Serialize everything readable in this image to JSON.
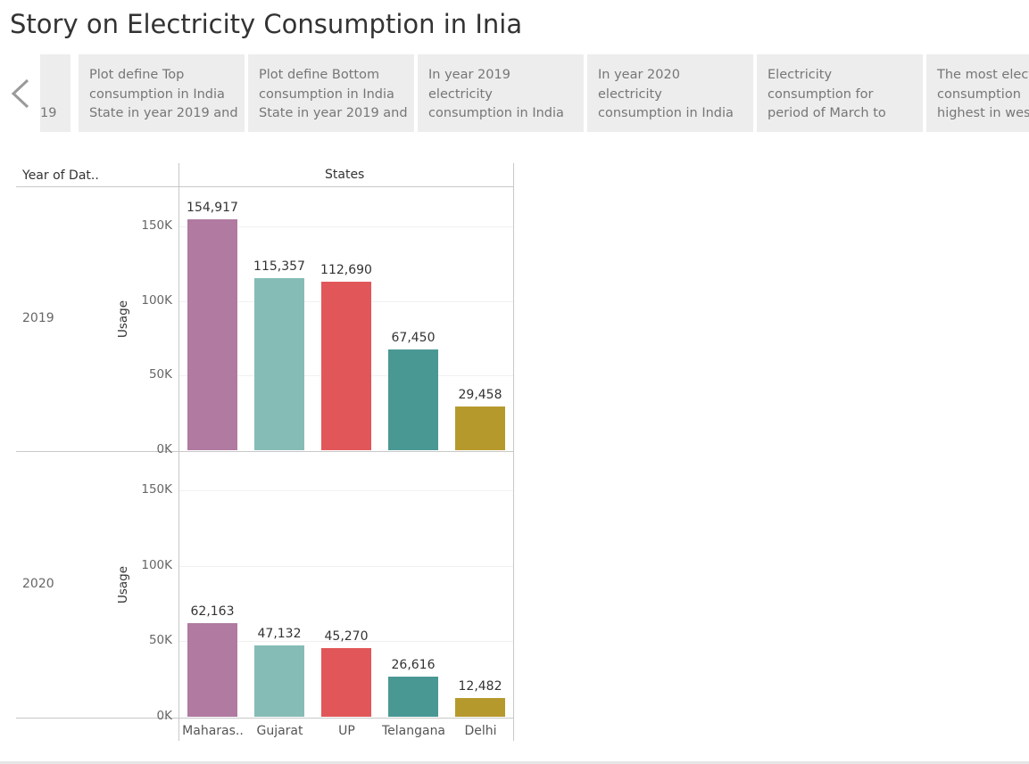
{
  "story": {
    "title": "Story on Electricity Consumption in Inia",
    "points": [
      {
        "lines": [
          "",
          "",
          "19"
        ]
      },
      {
        "lines": [
          "Plot define Top",
          "consumption in India",
          "State in year 2019 and"
        ]
      },
      {
        "lines": [
          "Plot define Bottom",
          "consumption in India",
          "State in year 2019 and"
        ]
      },
      {
        "lines": [
          "In year 2019",
          "electricity",
          "consumption in India"
        ]
      },
      {
        "lines": [
          "In year 2020",
          "electricity",
          "consumption in India"
        ]
      },
      {
        "lines": [
          "Electricity",
          "consumption for",
          "period of March to"
        ]
      },
      {
        "lines": [
          "The most electricity",
          "consumption  in",
          "highest in west"
        ]
      }
    ]
  },
  "viz": {
    "row_header": "Year of Dat..",
    "column_header": "States",
    "axis_title": "Usage",
    "ticks": [
      "0K",
      "50K",
      "100K",
      "150K"
    ]
  },
  "chart_data": {
    "type": "bar",
    "categories": [
      "Maharas..",
      "Gujarat",
      "UP",
      "Telangana",
      "Delhi"
    ],
    "colors": [
      "#b07aa1",
      "#86bcb6",
      "#e15759",
      "#499894",
      "#b6992d"
    ],
    "ylim": [
      0,
      175000
    ],
    "ylabel": "Usage",
    "xlabel": "States",
    "rows": [
      {
        "name": "2019",
        "values": [
          154917,
          115357,
          112690,
          67450,
          29458
        ],
        "labels": [
          "154,917",
          "115,357",
          "112,690",
          "67,450",
          "29,458"
        ]
      },
      {
        "name": "2020",
        "values": [
          62163,
          47132,
          45270,
          26616,
          12482
        ],
        "labels": [
          "62,163",
          "47,132",
          "45,270",
          "26,616",
          "12,482"
        ]
      }
    ]
  }
}
